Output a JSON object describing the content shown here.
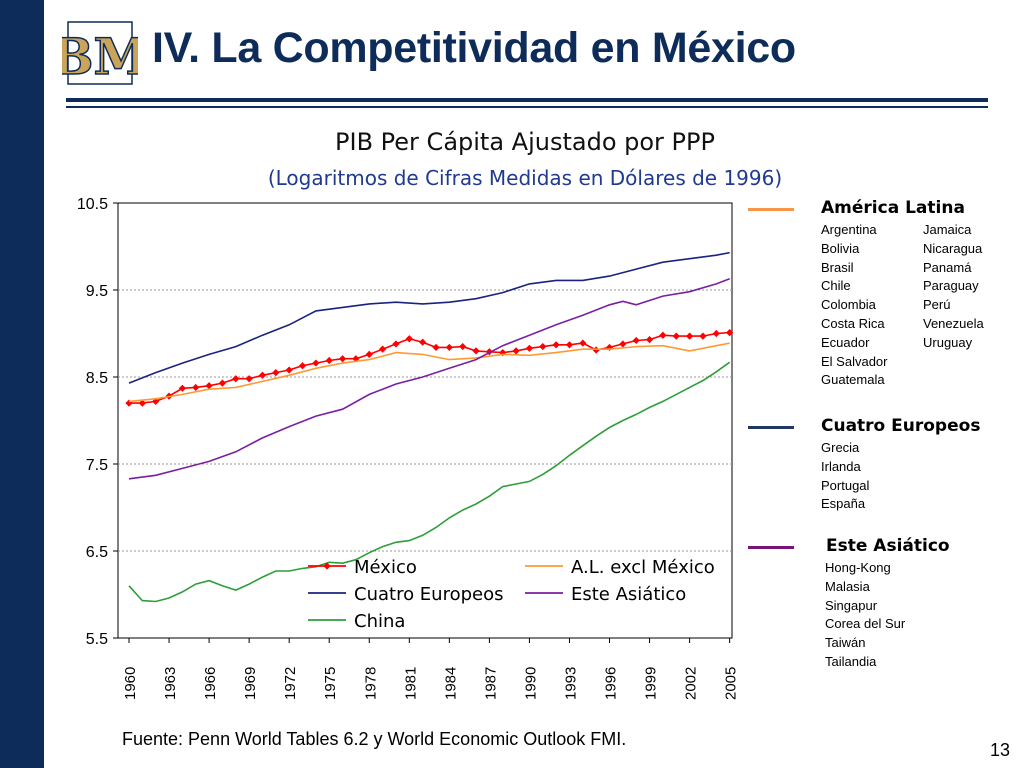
{
  "slide": {
    "title": "IV. La Competitividad en México",
    "source": "Fuente: Penn World Tables 6.2 y World Economic Outlook FMI.",
    "page_number": "13",
    "logo_text": "BM"
  },
  "colors": {
    "navy": "#0e2c59",
    "mexico": "#ff0000",
    "al": "#ff9933",
    "europe": "#1a237e",
    "asia": "#7b1fa2",
    "china": "#2e9e3a"
  },
  "groups": [
    {
      "title": "América Latina",
      "color": "#f79646",
      "col1": [
        "Argentina",
        "Bolivia",
        "Brasil",
        "Chile",
        "Colombia",
        "Costa Rica",
        "Ecuador",
        "El Salvador",
        "Guatemala"
      ],
      "col2": [
        "Jamaica",
        "Nicaragua",
        "Panamá",
        "Paraguay",
        "Perú",
        "Venezuela",
        "Uruguay"
      ]
    },
    {
      "title": "Cuatro Europeos",
      "color": "#1f3864",
      "col1": [
        "Grecia",
        "Irlanda",
        "Portugal",
        "España"
      ],
      "col2": []
    },
    {
      "title": "Este Asiático",
      "color": "#7b1477",
      "col1": [
        "Hong-Kong",
        "Malasia",
        "Singapur",
        "Corea del Sur",
        "Taiwán",
        "Tailandia"
      ],
      "col2": []
    }
  ],
  "chart_data": {
    "type": "line",
    "title": "PIB Per Cápita Ajustado por PPP",
    "subtitle": "(Logaritmos de Cifras Medidas en Dólares de 1996)",
    "ylim": [
      5.5,
      10.5
    ],
    "yticks": [
      5.5,
      6.5,
      7.5,
      8.5,
      9.5,
      10.5
    ],
    "xlim": [
      1960,
      2006
    ],
    "xticks": [
      1960,
      1963,
      1966,
      1969,
      1972,
      1975,
      1978,
      1981,
      1984,
      1987,
      1990,
      1993,
      1996,
      1999,
      2002,
      2005
    ],
    "grid": "horizontal at ticks",
    "legend_position": "bottom inside plot",
    "series": [
      {
        "name": "México",
        "color": "#ff0000",
        "marker": "diamond",
        "x": [
          1960,
          1961,
          1962,
          1963,
          1964,
          1965,
          1966,
          1967,
          1968,
          1969,
          1970,
          1971,
          1972,
          1973,
          1974,
          1975,
          1976,
          1977,
          1978,
          1979,
          1980,
          1981,
          1982,
          1983,
          1984,
          1985,
          1986,
          1987,
          1988,
          1989,
          1990,
          1991,
          1992,
          1993,
          1994,
          1995,
          1996,
          1997,
          1998,
          1999,
          2000,
          2001,
          2002,
          2003,
          2004,
          2005
        ],
        "y": [
          8.2,
          8.2,
          8.22,
          8.28,
          8.37,
          8.38,
          8.4,
          8.43,
          8.48,
          8.48,
          8.52,
          8.55,
          8.58,
          8.63,
          8.66,
          8.69,
          8.71,
          8.71,
          8.76,
          8.82,
          8.88,
          8.94,
          8.9,
          8.84,
          8.84,
          8.85,
          8.8,
          8.79,
          8.78,
          8.8,
          8.83,
          8.85,
          8.87,
          8.87,
          8.89,
          8.81,
          8.84,
          8.88,
          8.92,
          8.93,
          8.98,
          8.97,
          8.97,
          8.97,
          9.0,
          9.01
        ]
      },
      {
        "name": "A.L. excl México",
        "color": "#ff9933",
        "x": [
          1960,
          1962,
          1964,
          1966,
          1968,
          1970,
          1972,
          1974,
          1976,
          1978,
          1980,
          1982,
          1984,
          1986,
          1988,
          1990,
          1992,
          1994,
          1996,
          1998,
          2000,
          2002,
          2004,
          2005
        ],
        "y": [
          8.22,
          8.25,
          8.3,
          8.36,
          8.38,
          8.45,
          8.52,
          8.6,
          8.66,
          8.7,
          8.78,
          8.76,
          8.7,
          8.72,
          8.76,
          8.75,
          8.78,
          8.82,
          8.82,
          8.85,
          8.86,
          8.8,
          8.86,
          8.89
        ]
      },
      {
        "name": "Cuatro Europeos",
        "color": "#1a237e",
        "x": [
          1960,
          1962,
          1964,
          1966,
          1968,
          1970,
          1972,
          1974,
          1976,
          1978,
          1980,
          1982,
          1984,
          1986,
          1988,
          1990,
          1992,
          1994,
          1996,
          1998,
          2000,
          2002,
          2004,
          2005
        ],
        "y": [
          8.43,
          8.55,
          8.66,
          8.76,
          8.85,
          8.98,
          9.1,
          9.26,
          9.3,
          9.34,
          9.36,
          9.34,
          9.36,
          9.4,
          9.47,
          9.57,
          9.61,
          9.61,
          9.66,
          9.74,
          9.82,
          9.86,
          9.9,
          9.93
        ]
      },
      {
        "name": "Este Asiático",
        "color": "#7b1fa2",
        "x": [
          1960,
          1962,
          1964,
          1966,
          1968,
          1970,
          1972,
          1974,
          1976,
          1978,
          1980,
          1982,
          1984,
          1986,
          1988,
          1990,
          1992,
          1994,
          1996,
          1997,
          1998,
          2000,
          2002,
          2004,
          2005
        ],
        "y": [
          7.33,
          7.37,
          7.45,
          7.53,
          7.64,
          7.8,
          7.93,
          8.05,
          8.13,
          8.3,
          8.42,
          8.5,
          8.6,
          8.7,
          8.86,
          8.98,
          9.1,
          9.21,
          9.33,
          9.37,
          9.33,
          9.43,
          9.48,
          9.57,
          9.63
        ]
      },
      {
        "name": "China",
        "color": "#2e9e3a",
        "x": [
          1960,
          1961,
          1962,
          1963,
          1964,
          1965,
          1966,
          1967,
          1968,
          1969,
          1970,
          1971,
          1972,
          1973,
          1974,
          1975,
          1976,
          1977,
          1978,
          1979,
          1980,
          1981,
          1982,
          1983,
          1984,
          1985,
          1986,
          1987,
          1988,
          1989,
          1990,
          1991,
          1992,
          1993,
          1994,
          1995,
          1996,
          1997,
          1998,
          1999,
          2000,
          2001,
          2002,
          2003,
          2004,
          2005
        ],
        "y": [
          6.1,
          5.93,
          5.92,
          5.96,
          6.03,
          6.12,
          6.16,
          6.1,
          6.05,
          6.12,
          6.2,
          6.27,
          6.27,
          6.3,
          6.32,
          6.37,
          6.36,
          6.4,
          6.48,
          6.55,
          6.6,
          6.62,
          6.68,
          6.77,
          6.88,
          6.97,
          7.04,
          7.13,
          7.24,
          7.27,
          7.3,
          7.38,
          7.48,
          7.6,
          7.71,
          7.82,
          7.92,
          8.0,
          8.07,
          8.15,
          8.22,
          8.3,
          8.38,
          8.46,
          8.56,
          8.67
        ]
      }
    ]
  }
}
